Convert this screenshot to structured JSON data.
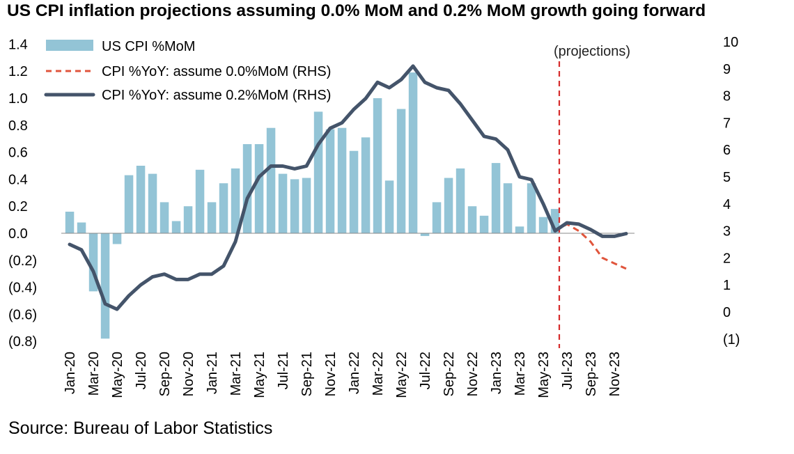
{
  "chart_data": {
    "type": "bar+line",
    "title": "US CPI inflation projections assuming 0.0% MoM and 0.2% MoM growth going forward",
    "source": "Source: Bureau of Labor Statistics",
    "annotation": "(projections)",
    "left_axis": {
      "range": [
        -0.8,
        1.4
      ],
      "ticks": [
        1.4,
        1.2,
        1.0,
        0.8,
        0.6,
        0.4,
        0.2,
        0.0,
        -0.2,
        -0.4,
        -0.6,
        -0.8
      ],
      "tick_labels": [
        "1.4",
        "1.2",
        "1.0",
        "0.8",
        "0.6",
        "0.4",
        "0.2",
        "0.0",
        "(0.2)",
        "(0.4)",
        "(0.6)",
        "(0.8)"
      ]
    },
    "right_axis": {
      "range": [
        -1,
        10
      ],
      "ticks": [
        10,
        9,
        8,
        7,
        6,
        5,
        4,
        3,
        2,
        1,
        0,
        -1
      ],
      "tick_labels": [
        "10",
        "9",
        "8",
        "7",
        "6",
        "5",
        "4",
        "3",
        "2",
        "1",
        "0",
        "(1)"
      ]
    },
    "x_tick_labels": [
      "Jan-20",
      "Mar-20",
      "May-20",
      "Jul-20",
      "Sep-20",
      "Nov-20",
      "Jan-21",
      "Mar-21",
      "May-21",
      "Jul-21",
      "Sep-21",
      "Nov-21",
      "Jan-22",
      "Mar-22",
      "May-22",
      "Jul-22",
      "Sep-22",
      "Nov-22",
      "Jan-23",
      "Mar-23",
      "May-23",
      "Jul-23",
      "Sep-23",
      "Nov-23"
    ],
    "months": [
      "Jan-20",
      "Feb-20",
      "Mar-20",
      "Apr-20",
      "May-20",
      "Jun-20",
      "Jul-20",
      "Aug-20",
      "Sep-20",
      "Oct-20",
      "Nov-20",
      "Dec-20",
      "Jan-21",
      "Feb-21",
      "Mar-21",
      "Apr-21",
      "May-21",
      "Jun-21",
      "Jul-21",
      "Aug-21",
      "Sep-21",
      "Oct-21",
      "Nov-21",
      "Dec-21",
      "Jan-22",
      "Feb-22",
      "Mar-22",
      "Apr-22",
      "May-22",
      "Jun-22",
      "Jul-22",
      "Aug-22",
      "Sep-22",
      "Oct-22",
      "Nov-22",
      "Dec-22",
      "Jan-23",
      "Feb-23",
      "Mar-23",
      "Apr-23",
      "May-23",
      "Jun-23",
      "Jul-23",
      "Aug-23",
      "Sep-23",
      "Oct-23",
      "Nov-23",
      "Dec-23"
    ],
    "projection_start": "Jun-23",
    "series": [
      {
        "name": "US CPI %MoM",
        "kind": "bar",
        "axis": "left",
        "color": "#93c4d6",
        "values": [
          0.16,
          0.08,
          -0.43,
          -0.78,
          -0.08,
          0.43,
          0.5,
          0.44,
          0.23,
          0.09,
          0.2,
          0.47,
          0.23,
          0.37,
          0.48,
          0.66,
          0.66,
          0.78,
          0.44,
          0.4,
          0.41,
          0.9,
          0.77,
          0.78,
          0.61,
          0.71,
          1.0,
          0.39,
          0.92,
          1.19,
          -0.02,
          0.23,
          0.41,
          0.48,
          0.2,
          0.13,
          0.52,
          0.37,
          0.05,
          0.37,
          0.12,
          0.18
        ]
      },
      {
        "name": "CPI %YoY: assume 0.0%MoM (RHS)",
        "kind": "line",
        "style": "dashed",
        "axis": "right",
        "color": "#e0553c",
        "values": [
          null,
          null,
          null,
          null,
          null,
          null,
          null,
          null,
          null,
          null,
          null,
          null,
          null,
          null,
          null,
          null,
          null,
          null,
          null,
          null,
          null,
          null,
          null,
          null,
          null,
          null,
          null,
          null,
          null,
          null,
          null,
          null,
          null,
          null,
          null,
          null,
          null,
          null,
          null,
          null,
          null,
          3.0,
          3.25,
          3.0,
          2.6,
          2.0,
          1.8,
          1.6
        ]
      },
      {
        "name": "CPI %YoY: assume 0.2%MoM (RHS)",
        "kind": "line",
        "style": "solid",
        "axis": "right",
        "color": "#44546a",
        "values": [
          2.5,
          2.3,
          1.5,
          0.3,
          0.1,
          0.6,
          1.0,
          1.3,
          1.4,
          1.2,
          1.2,
          1.4,
          1.4,
          1.7,
          2.6,
          4.2,
          5.0,
          5.4,
          5.4,
          5.3,
          5.4,
          6.2,
          6.8,
          7.0,
          7.5,
          7.9,
          8.5,
          8.3,
          8.6,
          9.1,
          8.5,
          8.3,
          8.2,
          7.7,
          7.1,
          6.5,
          6.4,
          6.0,
          5.0,
          4.9,
          4.0,
          3.0,
          3.3,
          3.25,
          3.05,
          2.8,
          2.8,
          2.9
        ]
      }
    ],
    "legend_position": "top-left"
  }
}
